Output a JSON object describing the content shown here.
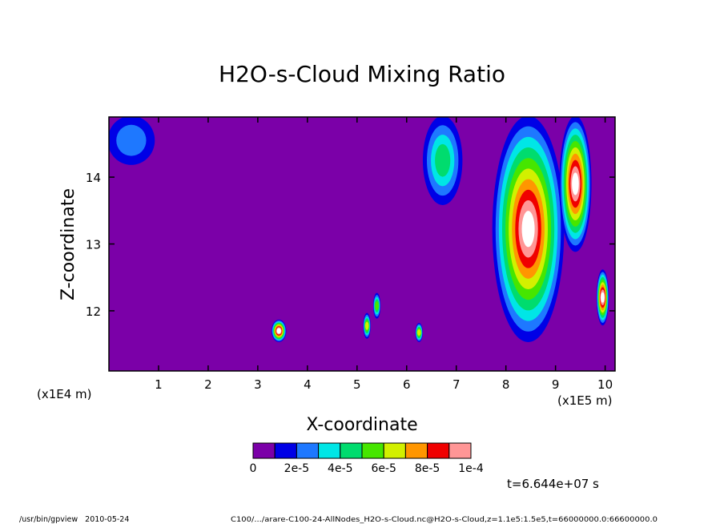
{
  "chart_data": {
    "type": "heatmap",
    "title": "H2O-s-Cloud Mixing Ratio",
    "xlabel": "X-coordinate",
    "ylabel": "Z-coordinate",
    "x_unit": "(x1E5 m)",
    "y_unit": "(x1E4 m)",
    "xlim": [
      0.0,
      10.2
    ],
    "ylim": [
      11.1,
      14.9
    ],
    "x_ticks": [
      "1",
      "2",
      "3",
      "4",
      "5",
      "6",
      "7",
      "8",
      "9",
      "10"
    ],
    "y_ticks": [
      "12",
      "13",
      "14"
    ],
    "y_tick_values": [
      12,
      13,
      14
    ],
    "background_level": 0,
    "colorbar": {
      "colors": [
        "#7b00a8",
        "#0000e6",
        "#1e78ff",
        "#00e6e6",
        "#00dc6e",
        "#46e600",
        "#d2f000",
        "#ff9600",
        "#f00000",
        "#ff9696"
      ],
      "labels": [
        "0",
        "2e-5",
        "4e-5",
        "6e-5",
        "8e-5",
        "1e-4"
      ],
      "saturation_color": "#ffffff"
    },
    "features": [
      {
        "x": [
          0.0,
          0.9
        ],
        "z": [
          14.2,
          14.9
        ],
        "level": 2
      },
      {
        "x": [
          3.3,
          3.55
        ],
        "z": [
          11.55,
          11.85
        ],
        "level": 10
      },
      {
        "x": [
          5.15,
          5.25
        ],
        "z": [
          11.6,
          11.95
        ],
        "level": 6
      },
      {
        "x": [
          5.35,
          5.45
        ],
        "z": [
          11.9,
          12.25
        ],
        "level": 5
      },
      {
        "x": [
          6.2,
          6.3
        ],
        "z": [
          11.55,
          11.8
        ],
        "level": 6
      },
      {
        "x": [
          6.35,
          7.1
        ],
        "z": [
          13.6,
          14.9
        ],
        "level": 4
      },
      {
        "x": [
          7.75,
          9.15
        ],
        "z": [
          11.55,
          14.9
        ],
        "level": 10
      },
      {
        "x": [
          9.1,
          9.7
        ],
        "z": [
          12.9,
          14.9
        ],
        "level": 10
      },
      {
        "x": [
          9.85,
          10.05
        ],
        "z": [
          11.8,
          12.6
        ],
        "level": 10
      }
    ],
    "time_label": "t=6.644e+07 s"
  },
  "footer": {
    "left": "/usr/bin/gpview   2010-05-24",
    "right": "C100/.../arare-C100-24-AllNodes_H2O-s-Cloud.nc@H2O-s-Cloud,z=1.1e5:1.5e5,t=66000000.0:66600000.0"
  }
}
